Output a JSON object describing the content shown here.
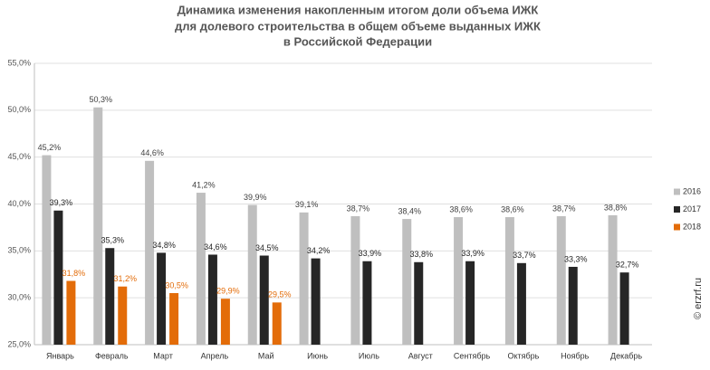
{
  "chart_data": {
    "type": "bar",
    "title": [
      "Динамика изменения накопленным итогом доли объема ИЖК",
      "для долевого строительства  в общем объеме выданных ИЖК",
      "в Российской  Федерации"
    ],
    "watermark": "© erzrf.ru",
    "categories": [
      "Январь",
      "Февраль",
      "Март",
      "Апрель",
      "Май",
      "Июнь",
      "Июль",
      "Август",
      "Сентябрь",
      "Октябрь",
      "Ноябрь",
      "Декабрь"
    ],
    "series": [
      {
        "name": "2016",
        "color": "#bfbfbf",
        "label_color": "#404040",
        "values": [
          45.2,
          50.3,
          44.6,
          41.2,
          39.9,
          39.1,
          38.7,
          38.4,
          38.6,
          38.6,
          38.7,
          38.8
        ],
        "value_labels": [
          "45,2%",
          "50,3%",
          "44,6%",
          "41,2%",
          "39,9%",
          "39,1%",
          "38,7%",
          "38,4%",
          "38,6%",
          "38,6%",
          "38,7%",
          "38,8%"
        ]
      },
      {
        "name": "2017",
        "color": "#262626",
        "label_color": "#262626",
        "values": [
          39.3,
          35.3,
          34.8,
          34.6,
          34.5,
          34.2,
          33.9,
          33.8,
          33.9,
          33.7,
          33.3,
          32.7
        ],
        "value_labels": [
          "39,3%",
          "35,3%",
          "34,8%",
          "34,6%",
          "34,5%",
          "34,2%",
          "33,9%",
          "33,8%",
          "33,9%",
          "33,7%",
          "33,3%",
          "32,7%"
        ]
      },
      {
        "name": "2018",
        "color": "#e36c09",
        "label_color": "#e36c09",
        "values": [
          31.8,
          31.2,
          30.5,
          29.9,
          29.5,
          null,
          null,
          null,
          null,
          null,
          null,
          null
        ],
        "value_labels": [
          "31,8%",
          "31,2%",
          "30,5%",
          "29,9%",
          "29,5%",
          null,
          null,
          null,
          null,
          null,
          null,
          null
        ]
      }
    ],
    "ylim": [
      25,
      55
    ],
    "yticks": [
      {
        "value": 25,
        "label": "25,0%"
      },
      {
        "value": 30,
        "label": "30,0%"
      },
      {
        "value": 35,
        "label": "35,0%"
      },
      {
        "value": 40,
        "label": "40,0%"
      },
      {
        "value": 45,
        "label": "45,0%"
      },
      {
        "value": 50,
        "label": "50,0%"
      },
      {
        "value": 55,
        "label": "55,0%"
      }
    ],
    "grid": true,
    "legend": "right"
  }
}
